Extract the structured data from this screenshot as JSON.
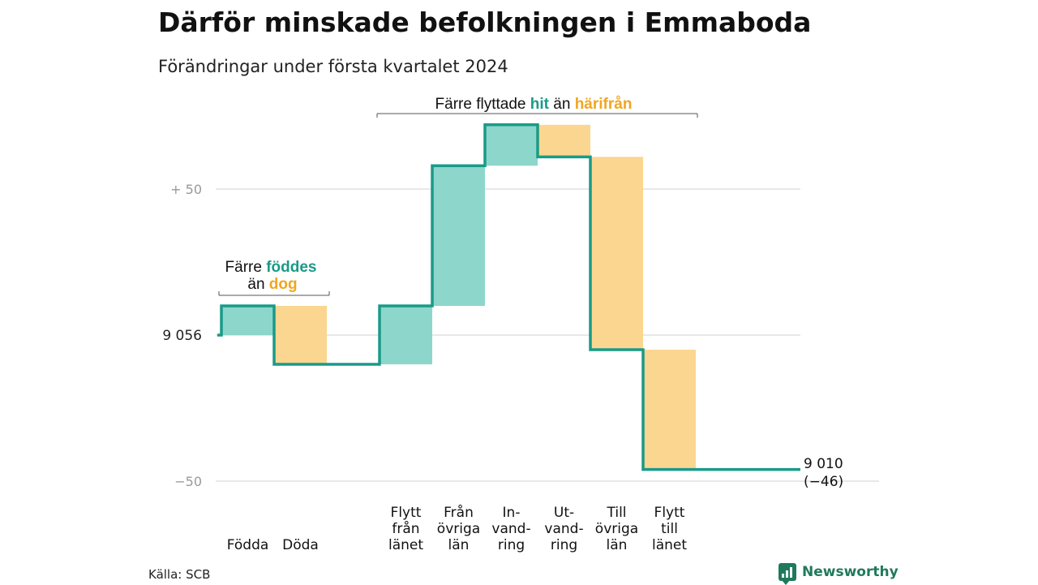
{
  "title": "Därför minskade befolkningen i Emmaboda",
  "subtitle": "Förändringar under första kvartalet 2024",
  "source": "Källa: SCB",
  "brand": "Newsworthy",
  "colors": {
    "increase": "#8dd6cb",
    "decrease": "#fad690",
    "line": "#1a9a88",
    "grid": "#e0e0e0"
  },
  "annotations": {
    "births": {
      "part1": "Färre",
      "part2": "föddes",
      "part3": "än",
      "part4": "dog"
    },
    "moves": {
      "part1": "Färre flyttade",
      "part2": "hit",
      "part3": "än",
      "part4": "härifrån"
    }
  },
  "chart_data": {
    "type": "waterfall",
    "title": "Därför minskade befolkningen i Emmaboda",
    "subtitle": "Förändringar under första kvartalet 2024",
    "start_value": 9056,
    "end_value": 9010,
    "net_change": -46,
    "start_label": "9  056",
    "end_label_line1": "9 010",
    "end_label_line2": "(−46)",
    "y_ticks": [
      {
        "value": 50,
        "label": "+  50"
      },
      {
        "value": 0,
        "label": ""
      },
      {
        "value": -50,
        "label": "−50"
      }
    ],
    "ylim": [
      -50,
      72
    ],
    "grid": true,
    "categories": [
      {
        "lines": [
          "Födda"
        ],
        "change": 10
      },
      {
        "lines": [
          "Döda"
        ],
        "change": -20
      },
      {
        "lines": [
          "Flytt",
          "från",
          "länet"
        ],
        "change": 20
      },
      {
        "lines": [
          "Från",
          "övriga",
          "län"
        ],
        "change": 48
      },
      {
        "lines": [
          "In-",
          "vand-",
          "ring"
        ],
        "change": 14
      },
      {
        "lines": [
          "Ut-",
          "vand-",
          "ring"
        ],
        "change": -11
      },
      {
        "lines": [
          "Till",
          "övriga",
          "län"
        ],
        "change": -66
      },
      {
        "lines": [
          "Flytt",
          "till",
          "länet"
        ],
        "change": -41
      }
    ]
  }
}
